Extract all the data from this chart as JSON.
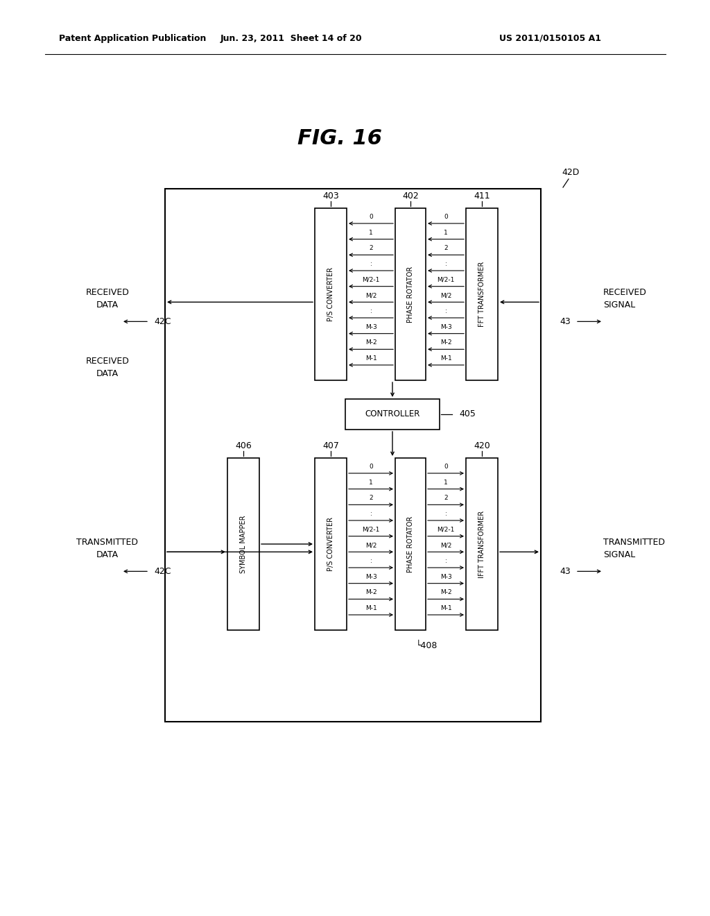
{
  "header_left": "Patent Application Publication",
  "header_center": "Jun. 23, 2011  Sheet 14 of 20",
  "header_right": "US 2011/0150105 A1",
  "fig_title": "FIG. 16",
  "bg_color": "#ffffff",
  "recv_labels": [
    "0",
    "1",
    "2",
    ":",
    "M/2-1",
    "M/2",
    ":",
    "M-3",
    "M-2",
    "M-1"
  ],
  "trans_labels": [
    "0",
    "1",
    "2",
    ":",
    "M/2-1",
    "M/2",
    ":",
    "M-3",
    "M-2",
    "M-1"
  ]
}
